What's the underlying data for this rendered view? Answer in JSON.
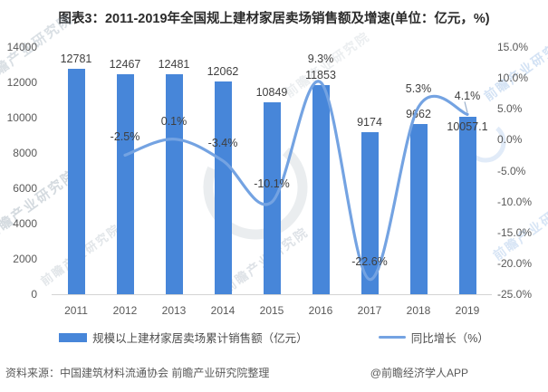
{
  "title": "图表3：2011-2019年全国规上建材家居卖场销售额及增速(单位：亿元，%)",
  "watermark": {
    "text": "前瞻产业研究院"
  },
  "footer": {
    "source": "资料来源：中国建筑材料流通协会 前瞻产业研究院整理",
    "credit": "@前瞻经济学人APP"
  },
  "colors": {
    "bar": "#4786D9",
    "line": "#74A3E2",
    "axis_text": "#595959",
    "label_text": "#3f3f3f",
    "leader": "#9ab0cc"
  },
  "chart_data": {
    "type": "bar",
    "title": "2011-2019年全国规上建材家居卖场销售额及增速",
    "categories": [
      "2011",
      "2012",
      "2013",
      "2014",
      "2015",
      "2016",
      "2017",
      "2018",
      "2019"
    ],
    "series": [
      {
        "name": "规模以上建材家居卖场累计销售额（亿元）",
        "type": "bar",
        "values": [
          12781,
          12467,
          12481,
          12062,
          10849,
          11853,
          9174,
          9662,
          10057.1
        ],
        "data_labels": [
          "12781",
          "12467",
          "12481",
          "12062",
          "10849",
          "11853",
          "9174",
          "9662",
          "10057.1"
        ]
      },
      {
        "name": "同比增长（%）",
        "type": "line",
        "start_category_index": 1,
        "values": [
          -2.5,
          0.1,
          -3.4,
          -10.1,
          9.3,
          -22.6,
          5.3,
          4.1
        ],
        "data_labels": [
          "-2.5%",
          "0.1%",
          "-3.4%",
          "-10.1%",
          "9.3%",
          "-22.6%",
          "5.3%",
          "4.1%"
        ]
      }
    ],
    "left_axis": {
      "min": 0,
      "max": 14000,
      "step": 2000,
      "tick_labels": [
        "14000",
        "12000",
        "10000",
        "8000",
        "6000",
        "4000",
        "2000",
        "0"
      ]
    },
    "right_axis": {
      "min": -25,
      "max": 15,
      "step": 5,
      "tick_labels": [
        "15.0%",
        "10.0%",
        "5.0%",
        "0.0%",
        "-5.0%",
        "-10.0%",
        "-15.0%",
        "-20.0%",
        "-25.0%"
      ]
    },
    "grid": false,
    "legend_position": "bottom",
    "layout_hints": {
      "bar_label_dy": [
        0,
        0,
        0,
        0,
        0,
        0,
        0,
        0,
        22
      ],
      "line_label_dy": [
        0,
        0,
        0,
        0,
        -6,
        0,
        0,
        0
      ],
      "last_point_leader": true
    }
  }
}
